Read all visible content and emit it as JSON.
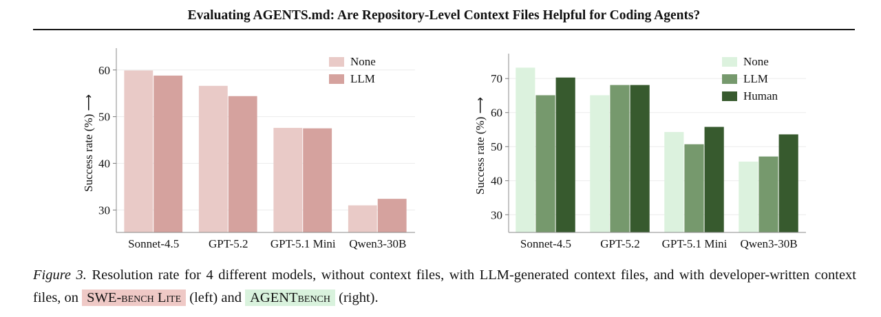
{
  "header": {
    "title": "Evaluating AGENTS.md: Are Repository-Level Context Files Helpful for Coding Agents?"
  },
  "chart_data": [
    {
      "type": "bar",
      "categories": [
        "Sonnet-4.5",
        "GPT-5.2",
        "GPT-5.1 Mini",
        "Qwen3-30B"
      ],
      "series": [
        {
          "name": "None",
          "values": [
            59.9,
            56.6,
            47.6,
            31.0
          ],
          "color": "#e9cac7"
        },
        {
          "name": "LLM",
          "values": [
            58.8,
            54.4,
            47.5,
            32.4
          ],
          "color": "#d5a29e"
        }
      ],
      "ylabel": "Success rate (%) ⟶",
      "ylim": [
        25.2,
        63.5
      ],
      "yticks": [
        30,
        40,
        50,
        60
      ],
      "grid": true,
      "legend": "top-right"
    },
    {
      "type": "bar",
      "categories": [
        "Sonnet-4.5",
        "GPT-5.2",
        "GPT-5.1 Mini",
        "Qwen3-30B"
      ],
      "series": [
        {
          "name": "None",
          "values": [
            73.2,
            65.1,
            54.3,
            45.6
          ],
          "color": "#dcf2de"
        },
        {
          "name": "LLM",
          "values": [
            65.1,
            68.1,
            50.7,
            47.1
          ],
          "color": "#76996d"
        },
        {
          "name": "Human",
          "values": [
            70.3,
            68.1,
            55.8,
            53.6
          ],
          "color": "#375a2e"
        }
      ],
      "ylabel": "Success rate (%) ⟶",
      "ylim": [
        24.8,
        75.7
      ],
      "yticks": [
        30,
        40,
        50,
        60,
        70
      ],
      "grid": true,
      "legend": "top-right"
    }
  ],
  "caption": {
    "label": "Figure 3.",
    "text_1": "Resolution rate for 4 different models, without context files, with LLM-generated context files, and with developer-written context files, on",
    "bench_1": "SWE-bench Lite",
    "text_2": "(left) and",
    "bench_2": "AGENTbench",
    "text_3": "(right)."
  }
}
